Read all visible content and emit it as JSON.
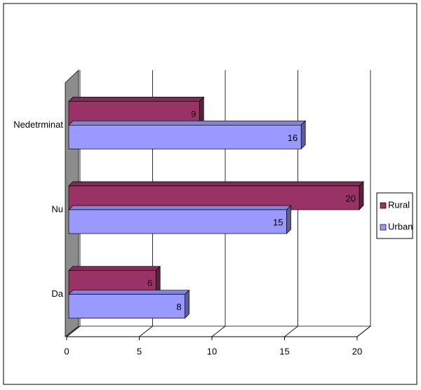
{
  "chart_data": {
    "type": "bar3d",
    "orientation": "horizontal",
    "categories": [
      "Da",
      "Nu",
      "Nedetrminat"
    ],
    "series": [
      {
        "name": "Rural",
        "color": "#993366",
        "values": [
          6,
          20,
          9
        ]
      },
      {
        "name": "Urban",
        "color": "#9999FF",
        "values": [
          8,
          15,
          16
        ]
      }
    ],
    "xlim": [
      0,
      20
    ],
    "xticks": [
      0,
      5,
      10,
      15,
      20
    ],
    "grid": true,
    "legend": "right"
  }
}
